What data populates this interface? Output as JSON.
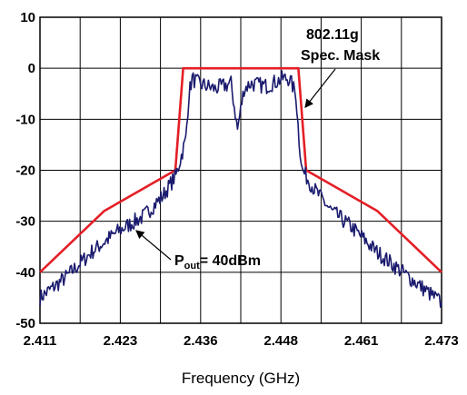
{
  "chart_data": {
    "type": "line",
    "xlabel": "Frequency (GHz)",
    "ylabel": "",
    "xlim": [
      2.411,
      2.473
    ],
    "ylim": [
      -50,
      10
    ],
    "x_ticks": [
      "2.411",
      "2.423",
      "2.436",
      "2.448",
      "2.461",
      "2.473"
    ],
    "y_ticks": [
      "10",
      "0",
      "-10",
      "-20",
      "-30",
      "-40",
      "-50"
    ],
    "grid": true,
    "series": [
      {
        "name": "802.11g Spec. Mask",
        "color": "#e41e26",
        "x": [
          2.411,
          2.4209,
          2.4319,
          2.4331,
          2.4509,
          2.4521,
          2.4631,
          2.473
        ],
        "y": [
          -40,
          -28,
          -20,
          0,
          0,
          -20,
          -28,
          -40
        ]
      },
      {
        "name": "Pout= 40dBm",
        "color": "#1a1a6e",
        "x": [
          2.411,
          2.415,
          2.419,
          2.423,
          2.427,
          2.43,
          2.432,
          2.4335,
          2.434,
          2.4345,
          2.4355,
          2.438,
          2.4405,
          2.4415,
          2.4425,
          2.4435,
          2.446,
          2.4485,
          2.4495,
          2.4505,
          2.451,
          2.4515,
          2.4535,
          2.456,
          2.459,
          2.463,
          2.467,
          2.47,
          2.473
        ],
        "y": [
          -45,
          -41,
          -36,
          -32,
          -29,
          -25,
          -21,
          -14,
          -5,
          -2,
          -3,
          -4,
          -3,
          -12,
          -4,
          -3,
          -3.5,
          -2,
          -2,
          -5,
          -14,
          -20,
          -24,
          -28,
          -31,
          -36,
          -40,
          -43,
          -46
        ]
      }
    ],
    "annotations": {
      "mask_label_line1": "802.11g",
      "mask_label_line2": "Spec. Mask",
      "pout_label_main": "P",
      "pout_label_sub": "out",
      "pout_label_rest": "= 40dBm"
    }
  }
}
